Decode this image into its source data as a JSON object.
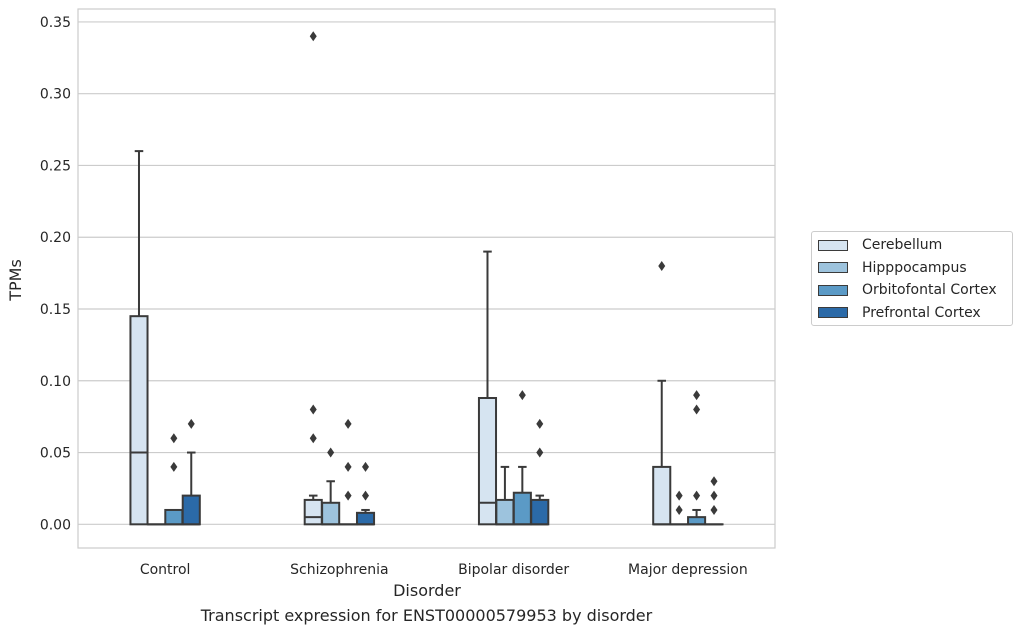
{
  "chart_data": {
    "type": "boxplot",
    "title": "",
    "caption": "Transcript expression for ENST00000579953 by disorder",
    "xlabel": "Disorder",
    "ylabel": "TPMs",
    "ylim": [
      -0.0165,
      0.359
    ],
    "yticks": [
      0.0,
      0.05,
      0.1,
      0.15,
      0.2,
      0.25,
      0.3,
      0.35
    ],
    "ytick_labels": [
      "0.00",
      "0.05",
      "0.10",
      "0.15",
      "0.20",
      "0.25",
      "0.30",
      "0.35"
    ],
    "grid": true,
    "legend_position": "right",
    "categories": [
      "Control",
      "Schizophrenia",
      "Bipolar disorder",
      "Major depression"
    ],
    "series": [
      {
        "name": "Cerebellum",
        "color": "#d6e4f1",
        "boxes": [
          {
            "q1": 0.0,
            "median": 0.05,
            "q3": 0.145,
            "whisker_low": 0.0,
            "whisker_high": 0.26,
            "outliers": []
          },
          {
            "q1": 0.0,
            "median": 0.005,
            "q3": 0.017,
            "whisker_low": 0.0,
            "whisker_high": 0.02,
            "outliers": [
              0.06,
              0.08,
              0.34
            ]
          },
          {
            "q1": 0.0,
            "median": 0.015,
            "q3": 0.088,
            "whisker_low": 0.0,
            "whisker_high": 0.19,
            "outliers": []
          },
          {
            "q1": 0.0,
            "median": 0.0,
            "q3": 0.04,
            "whisker_low": 0.0,
            "whisker_high": 0.1,
            "outliers": [
              0.18
            ]
          }
        ]
      },
      {
        "name": "Hipppocampus",
        "color": "#9dc3dd",
        "boxes": [
          {
            "q1": 0.0,
            "median": 0.0,
            "q3": 0.0,
            "whisker_low": 0.0,
            "whisker_high": 0.0,
            "outliers": []
          },
          {
            "q1": 0.0,
            "median": 0.0,
            "q3": 0.015,
            "whisker_low": 0.0,
            "whisker_high": 0.03,
            "outliers": [
              0.05
            ]
          },
          {
            "q1": 0.0,
            "median": 0.0,
            "q3": 0.017,
            "whisker_low": 0.0,
            "whisker_high": 0.04,
            "outliers": []
          },
          {
            "q1": 0.0,
            "median": 0.0,
            "q3": 0.0,
            "whisker_low": 0.0,
            "whisker_high": 0.0,
            "outliers": [
              0.01,
              0.02
            ]
          }
        ]
      },
      {
        "name": "Orbitofontal Cortex",
        "color": "#5b9ac6",
        "boxes": [
          {
            "q1": 0.0,
            "median": 0.0,
            "q3": 0.01,
            "whisker_low": 0.0,
            "whisker_high": 0.01,
            "outliers": [
              0.04,
              0.06
            ]
          },
          {
            "q1": 0.0,
            "median": 0.0,
            "q3": 0.0,
            "whisker_low": 0.0,
            "whisker_high": 0.0,
            "outliers": [
              0.02,
              0.04,
              0.07
            ]
          },
          {
            "q1": 0.0,
            "median": 0.0,
            "q3": 0.022,
            "whisker_low": 0.0,
            "whisker_high": 0.04,
            "outliers": [
              0.09
            ]
          },
          {
            "q1": 0.0,
            "median": 0.0,
            "q3": 0.005,
            "whisker_low": 0.0,
            "whisker_high": 0.01,
            "outliers": [
              0.02,
              0.08,
              0.09
            ]
          }
        ]
      },
      {
        "name": "Prefrontal Cortex",
        "color": "#2b6aa8",
        "boxes": [
          {
            "q1": 0.0,
            "median": 0.0,
            "q3": 0.02,
            "whisker_low": 0.0,
            "whisker_high": 0.05,
            "outliers": [
              0.07
            ]
          },
          {
            "q1": 0.0,
            "median": 0.0,
            "q3": 0.008,
            "whisker_low": 0.0,
            "whisker_high": 0.01,
            "outliers": [
              0.02,
              0.04
            ]
          },
          {
            "q1": 0.0,
            "median": 0.0,
            "q3": 0.017,
            "whisker_low": 0.0,
            "whisker_high": 0.02,
            "outliers": [
              0.05,
              0.07
            ]
          },
          {
            "q1": 0.0,
            "median": 0.0,
            "q3": 0.0,
            "whisker_low": 0.0,
            "whisker_high": 0.0,
            "outliers": [
              0.01,
              0.02,
              0.03
            ]
          }
        ]
      }
    ]
  }
}
